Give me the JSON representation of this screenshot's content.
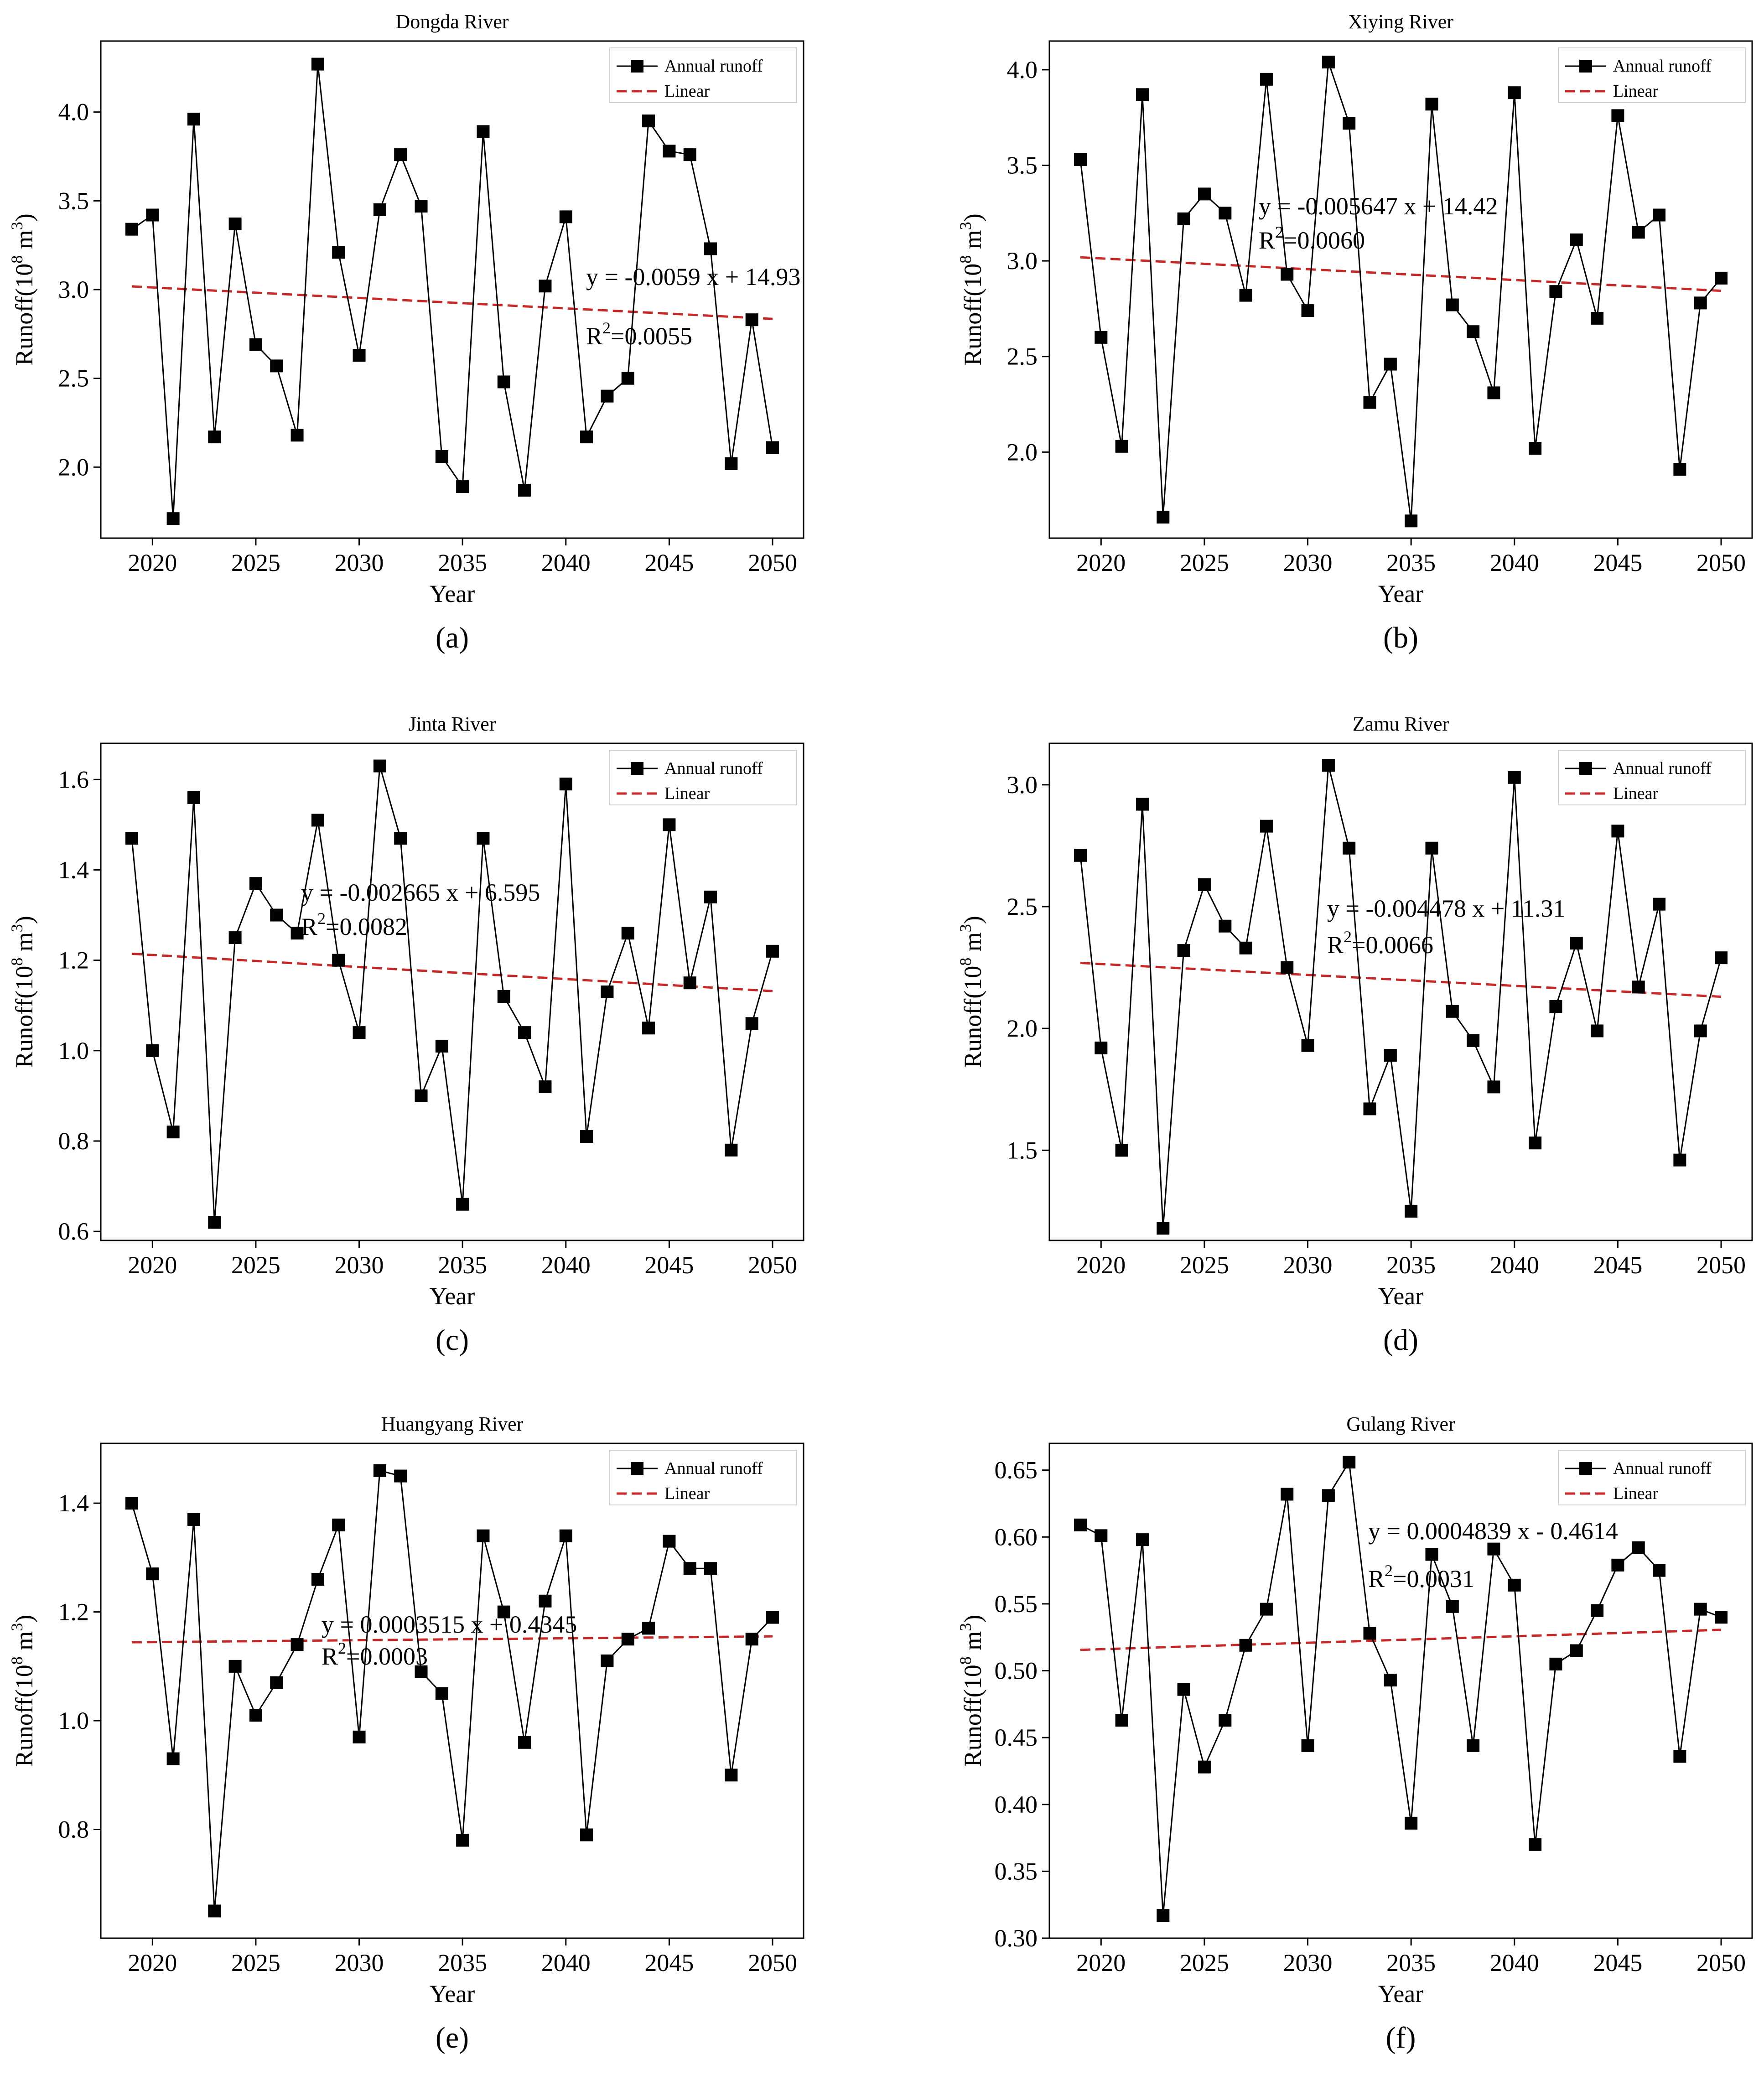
{
  "figure": {
    "panels": [
      {
        "panel_label": "(a)",
        "chart_data": {
          "type": "line",
          "title": "Dongda River",
          "xlabel": "Year",
          "ylabel": "Runoff(10^8 m^3)",
          "ylabel_base": "Runoff(10",
          "ylabel_exp1": "8",
          "ylabel_mid": " m",
          "ylabel_exp2": "3",
          "ylabel_end": ")",
          "xlim": [
            2017.5,
            2051.5
          ],
          "ylim": [
            1.6,
            4.4
          ],
          "xticks": [
            2020,
            2025,
            2030,
            2035,
            2040,
            2045,
            2050
          ],
          "yticks": [
            2.0,
            2.5,
            3.0,
            3.5,
            4.0
          ],
          "legend": [
            "Annual runoff",
            "Linear"
          ],
          "legend_position": "top-right",
          "x": [
            2019,
            2020,
            2021,
            2022,
            2023,
            2024,
            2025,
            2026,
            2027,
            2028,
            2029,
            2030,
            2031,
            2032,
            2033,
            2034,
            2035,
            2036,
            2037,
            2038,
            2039,
            2040,
            2041,
            2042,
            2043,
            2044,
            2045,
            2046,
            2047,
            2048,
            2049,
            2050
          ],
          "series": [
            {
              "name": "Annual runoff",
              "values": [
                3.34,
                3.42,
                1.71,
                3.96,
                2.17,
                3.37,
                2.69,
                2.57,
                2.18,
                4.27,
                3.21,
                2.63,
                3.45,
                3.76,
                3.47,
                2.06,
                1.89,
                3.89,
                2.48,
                1.87,
                3.02,
                3.41,
                2.17,
                2.4,
                2.5,
                3.95,
                3.78,
                3.76,
                3.23,
                2.02,
                2.83,
                2.11
              ]
            }
          ],
          "trend": {
            "slope": -0.0059,
            "intercept": 14.93
          },
          "equation": "y = -0.0059 x + 14.93",
          "r2_value": "=0.0055"
        }
      },
      {
        "panel_label": "(b)",
        "chart_data": {
          "type": "line",
          "title": "Xiying River",
          "xlabel": "Year",
          "ylabel": "Runoff(10^8 m^3)",
          "ylabel_base": "Runoff(10",
          "ylabel_exp1": "8",
          "ylabel_mid": " m",
          "ylabel_exp2": "3",
          "ylabel_end": ")",
          "xlim": [
            2017.5,
            2051.5
          ],
          "ylim": [
            1.55,
            4.15
          ],
          "xticks": [
            2020,
            2025,
            2030,
            2035,
            2040,
            2045,
            2050
          ],
          "yticks": [
            2.0,
            2.5,
            3.0,
            3.5,
            4.0
          ],
          "legend": [
            "Annual runoff",
            "Linear"
          ],
          "legend_position": "top-right",
          "x": [
            2019,
            2020,
            2021,
            2022,
            2023,
            2024,
            2025,
            2026,
            2027,
            2028,
            2029,
            2030,
            2031,
            2032,
            2033,
            2034,
            2035,
            2036,
            2037,
            2038,
            2039,
            2040,
            2041,
            2042,
            2043,
            2044,
            2045,
            2046,
            2047,
            2048,
            2049,
            2050
          ],
          "series": [
            {
              "name": "Annual runoff",
              "values": [
                3.53,
                2.6,
                2.03,
                3.87,
                1.66,
                3.22,
                3.35,
                3.25,
                2.82,
                3.95,
                2.93,
                2.74,
                4.04,
                3.72,
                2.26,
                2.46,
                1.64,
                3.82,
                2.77,
                2.63,
                2.31,
                3.88,
                2.02,
                2.84,
                3.11,
                2.7,
                3.76,
                3.15,
                3.24,
                1.91,
                2.78,
                2.91
              ]
            }
          ],
          "trend": {
            "slope": -0.005647,
            "intercept": 14.42
          },
          "equation": "y = -0.005647 x + 14.42",
          "r2_value": "=0.0060"
        }
      },
      {
        "panel_label": "(c)",
        "chart_data": {
          "type": "line",
          "title": "Jinta River",
          "xlabel": "Year",
          "ylabel": "Runoff(10^8 m^3)",
          "ylabel_base": "Runoff(10",
          "ylabel_exp1": "8",
          "ylabel_mid": " m",
          "ylabel_exp2": "3",
          "ylabel_end": ")",
          "xlim": [
            2017.5,
            2051.5
          ],
          "ylim": [
            0.58,
            1.68
          ],
          "xticks": [
            2020,
            2025,
            2030,
            2035,
            2040,
            2045,
            2050
          ],
          "yticks": [
            0.6,
            0.8,
            1.0,
            1.2,
            1.4,
            1.6
          ],
          "legend": [
            "Annual runoff",
            "Linear"
          ],
          "legend_position": "top-right",
          "x": [
            2019,
            2020,
            2021,
            2022,
            2023,
            2024,
            2025,
            2026,
            2027,
            2028,
            2029,
            2030,
            2031,
            2032,
            2033,
            2034,
            2035,
            2036,
            2037,
            2038,
            2039,
            2040,
            2041,
            2042,
            2043,
            2044,
            2045,
            2046,
            2047,
            2048,
            2049,
            2050
          ],
          "series": [
            {
              "name": "Annual runoff",
              "values": [
                1.47,
                1.0,
                0.82,
                1.56,
                0.62,
                1.25,
                1.37,
                1.3,
                1.26,
                1.51,
                1.2,
                1.04,
                1.63,
                1.47,
                0.9,
                1.01,
                0.66,
                1.47,
                1.12,
                1.04,
                0.92,
                1.59,
                0.81,
                1.13,
                1.26,
                1.05,
                1.5,
                1.15,
                1.34,
                0.78,
                1.06,
                1.22
              ]
            }
          ],
          "trend": {
            "slope": -0.002665,
            "intercept": 6.595
          },
          "equation": "y = -0.002665 x + 6.595",
          "r2_value": "=0.0082"
        }
      },
      {
        "panel_label": "(d)",
        "chart_data": {
          "type": "line",
          "title": "Zamu River",
          "xlabel": "Year",
          "ylabel": "Runoff(10^8 m^3)",
          "ylabel_base": "Runoff(10",
          "ylabel_exp1": "8",
          "ylabel_mid": " m",
          "ylabel_exp2": "3",
          "ylabel_end": ")",
          "xlim": [
            2017.5,
            2051.5
          ],
          "ylim": [
            1.13,
            3.17
          ],
          "xticks": [
            2020,
            2025,
            2030,
            2035,
            2040,
            2045,
            2050
          ],
          "yticks": [
            1.5,
            2.0,
            2.5,
            3.0
          ],
          "legend": [
            "Annual runoff",
            "Linear"
          ],
          "legend_position": "top-right",
          "x": [
            2019,
            2020,
            2021,
            2022,
            2023,
            2024,
            2025,
            2026,
            2027,
            2028,
            2029,
            2030,
            2031,
            2032,
            2033,
            2034,
            2035,
            2036,
            2037,
            2038,
            2039,
            2040,
            2041,
            2042,
            2043,
            2044,
            2045,
            2046,
            2047,
            2048,
            2049,
            2050
          ],
          "series": [
            {
              "name": "Annual runoff",
              "values": [
                2.71,
                1.92,
                1.5,
                2.92,
                1.18,
                2.32,
                2.59,
                2.42,
                2.33,
                2.83,
                2.25,
                1.93,
                3.08,
                2.74,
                1.67,
                1.89,
                1.25,
                2.74,
                2.07,
                1.95,
                1.76,
                3.03,
                1.53,
                2.09,
                2.35,
                1.99,
                2.81,
                2.17,
                2.51,
                1.46,
                1.99,
                2.29
              ]
            }
          ],
          "trend": {
            "slope": -0.004478,
            "intercept": 11.31
          },
          "equation": "y = -0.004478 x + 11.31",
          "r2_value": "=0.0066"
        }
      },
      {
        "panel_label": "(e)",
        "chart_data": {
          "type": "line",
          "title": "Huangyang River",
          "xlabel": "Year",
          "ylabel": "Runoff(10^8 m^3)",
          "ylabel_base": "Runoff(10",
          "ylabel_exp1": "8",
          "ylabel_mid": " m",
          "ylabel_exp2": "3",
          "ylabel_end": ")",
          "xlim": [
            2017.5,
            2051.5
          ],
          "ylim": [
            0.6,
            1.51
          ],
          "xticks": [
            2020,
            2025,
            2030,
            2035,
            2040,
            2045,
            2050
          ],
          "yticks": [
            0.8,
            1.0,
            1.2,
            1.4
          ],
          "legend": [
            "Annual runoff",
            "Linear"
          ],
          "legend_position": "top-right",
          "x": [
            2019,
            2020,
            2021,
            2022,
            2023,
            2024,
            2025,
            2026,
            2027,
            2028,
            2029,
            2030,
            2031,
            2032,
            2033,
            2034,
            2035,
            2036,
            2037,
            2038,
            2039,
            2040,
            2041,
            2042,
            2043,
            2044,
            2045,
            2046,
            2047,
            2048,
            2049,
            2050
          ],
          "series": [
            {
              "name": "Annual runoff",
              "values": [
                1.4,
                1.27,
                0.93,
                1.37,
                0.65,
                1.1,
                1.01,
                1.07,
                1.14,
                1.26,
                1.36,
                0.97,
                1.46,
                1.45,
                1.09,
                1.05,
                0.78,
                1.34,
                1.2,
                0.96,
                1.22,
                1.34,
                0.79,
                1.11,
                1.15,
                1.17,
                1.33,
                1.28,
                1.28,
                0.9,
                1.15,
                1.19
              ]
            }
          ],
          "trend": {
            "slope": 0.0003515,
            "intercept": 0.4345
          },
          "equation": "y = 0.0003515 x + 0.4345",
          "r2_value": "=0.0003"
        }
      },
      {
        "panel_label": "(f)",
        "chart_data": {
          "type": "line",
          "title": "Gulang River",
          "xlabel": "Year",
          "ylabel": "Runoff(10^8 m^3)",
          "ylabel_base": "Runoff(10",
          "ylabel_exp1": "8",
          "ylabel_mid": " m",
          "ylabel_exp2": "3",
          "ylabel_end": ")",
          "xlim": [
            2017.5,
            2051.5
          ],
          "ylim": [
            0.3,
            0.67
          ],
          "xticks": [
            2020,
            2025,
            2030,
            2035,
            2040,
            2045,
            2050
          ],
          "yticks": [
            0.3,
            0.35,
            0.4,
            0.45,
            0.5,
            0.55,
            0.6,
            0.65
          ],
          "legend": [
            "Annual runoff",
            "Linear"
          ],
          "legend_position": "top-right",
          "x": [
            2019,
            2020,
            2021,
            2022,
            2023,
            2024,
            2025,
            2026,
            2027,
            2028,
            2029,
            2030,
            2031,
            2032,
            2033,
            2034,
            2035,
            2036,
            2037,
            2038,
            2039,
            2040,
            2041,
            2042,
            2043,
            2044,
            2045,
            2046,
            2047,
            2048,
            2049,
            2050
          ],
          "series": [
            {
              "name": "Annual runoff",
              "values": [
                0.609,
                0.601,
                0.463,
                0.598,
                0.317,
                0.486,
                0.428,
                0.463,
                0.519,
                0.546,
                0.632,
                0.444,
                0.631,
                0.656,
                0.528,
                0.493,
                0.386,
                0.587,
                0.548,
                0.444,
                0.591,
                0.564,
                0.37,
                0.505,
                0.515,
                0.545,
                0.579,
                0.592,
                0.575,
                0.436,
                0.546,
                0.54
              ]
            }
          ],
          "trend": {
            "slope": 0.0004839,
            "intercept": -0.4614
          },
          "equation": "y = 0.0004839 x - 0.4614",
          "r2_value": "=0.0031"
        }
      }
    ],
    "colors": {
      "series": "#000000",
      "trend": "#c62828",
      "frame": "#000000"
    }
  }
}
